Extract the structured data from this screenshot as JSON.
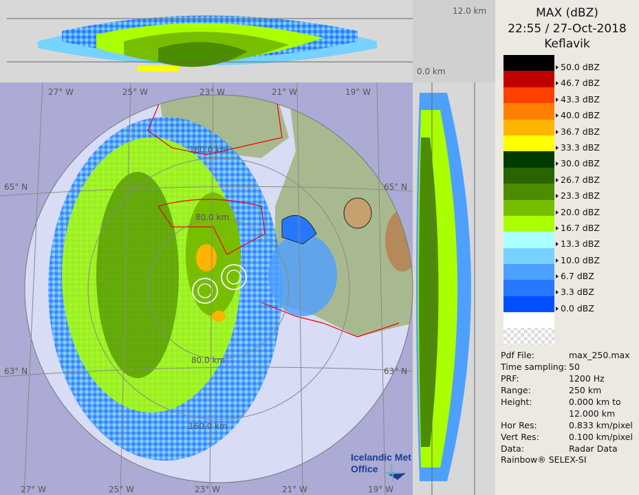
{
  "header": {
    "product": "MAX (dBZ)",
    "datetime": "22:55 / 27-Oct-2018",
    "station": "Keflavik"
  },
  "legend": [
    {
      "label": "50.0 dBZ",
      "color": "#000000"
    },
    {
      "label": "46.7 dBZ",
      "color": "#c00000"
    },
    {
      "label": "43.3 dBZ",
      "color": "#ff4000"
    },
    {
      "label": "40.0 dBZ",
      "color": "#ff8000"
    },
    {
      "label": "36.7 dBZ",
      "color": "#ffb400"
    },
    {
      "label": "33.3 dBZ",
      "color": "#ffff00"
    },
    {
      "label": "30.0 dBZ",
      "color": "#003c00"
    },
    {
      "label": "26.7 dBZ",
      "color": "#2a6400"
    },
    {
      "label": "23.3 dBZ",
      "color": "#4c8c00"
    },
    {
      "label": "20.0 dBZ",
      "color": "#78be00"
    },
    {
      "label": "16.7 dBZ",
      "color": "#aaff00"
    },
    {
      "label": "13.3 dBZ",
      "color": "#aaffff"
    },
    {
      "label": "10.0 dBZ",
      "color": "#78d2ff"
    },
    {
      "label": "6.7 dBZ",
      "color": "#4ea0ff"
    },
    {
      "label": "3.3 dBZ",
      "color": "#2878ff"
    },
    {
      "label": "0.0 dBZ",
      "color": "#0050ff"
    }
  ],
  "info": [
    {
      "key": "Pdf File:",
      "value": "max_250.max"
    },
    {
      "key": "Time sampling:",
      "value": "50"
    },
    {
      "key": "PRF:",
      "value": "1200 Hz"
    },
    {
      "key": "Range:",
      "value": "250 km"
    },
    {
      "key": "Height:",
      "value": "0.000 km to"
    },
    {
      "key": "",
      "value": "12.000 km"
    },
    {
      "key": "Hor Res:",
      "value": "0.833 km/pixel"
    },
    {
      "key": "Vert Res:",
      "value": "0.100 km/pixel"
    },
    {
      "key": "Data:",
      "value": "Radar Data"
    }
  ],
  "footer": "Rainbow® SELEX-SI",
  "map": {
    "height_top": "12.0 km",
    "height_bottom": "0.0 km",
    "lon_labels": [
      "27° W",
      "25° W",
      "23° W",
      "21° W",
      "19° W"
    ],
    "lat_labels": [
      "65° N",
      "63° N"
    ],
    "range_labels": [
      "80.0 km",
      "160.0 km"
    ],
    "logo_line1": "Icelandic Met",
    "logo_line2": "Office"
  }
}
